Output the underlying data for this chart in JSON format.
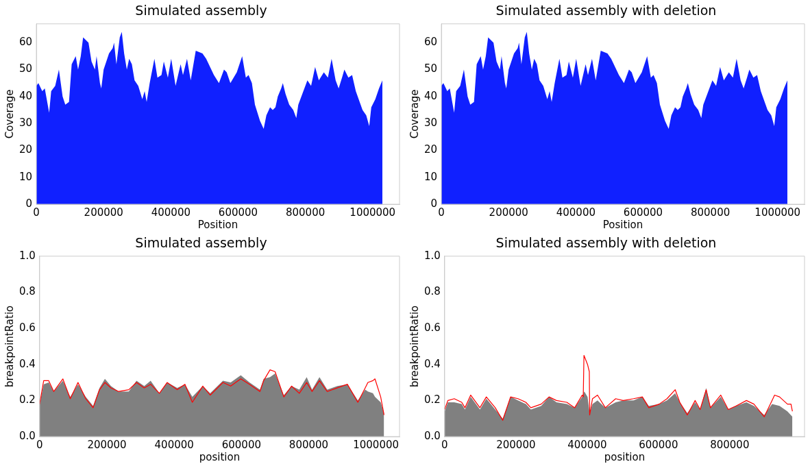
{
  "chart_data": [
    {
      "type": "area",
      "title": "Simulated assembly",
      "xlabel": "Position",
      "ylabel": "Coverage",
      "xlim": [
        0,
        1080000
      ],
      "ylim": [
        0,
        67
      ],
      "xticks": [
        0,
        200000,
        400000,
        600000,
        800000,
        1000000
      ],
      "yticks": [
        0,
        10,
        20,
        30,
        40,
        50,
        60
      ],
      "series": [
        {
          "color": "#1020ff",
          "x": [
            0,
            6000,
            17500,
            25000,
            38000,
            44000,
            56000,
            67000,
            78000,
            86000,
            97000,
            105000,
            117000,
            124000,
            132000,
            139000,
            155000,
            164000,
            174000,
            179000,
            189000,
            193000,
            200000,
            216000,
            227000,
            231000,
            238000,
            248000,
            254000,
            261000,
            269000,
            276000,
            284000,
            292000,
            303000,
            315000,
            322000,
            328000,
            337000,
            351000,
            360000,
            372000,
            379000,
            391000,
            401000,
            414000,
            429000,
            436000,
            448000,
            459000,
            474000,
            494000,
            505000,
            528000,
            543000,
            558000,
            566000,
            577000,
            596000,
            612000,
            623000,
            631000,
            641000,
            650000,
            665000,
            676000,
            684000,
            695000,
            703000,
            711000,
            718000,
            728000,
            733000,
            741000,
            752000,
            764000,
            773000,
            779000,
            794000,
            806000,
            817000,
            829000,
            840000,
            855000,
            867000,
            878000,
            890000,
            899000,
            909000,
            916000,
            928000,
            939000,
            950000,
            970000,
            981000,
            990000,
            996000,
            1008000,
            1019000,
            1029000
          ],
          "values": [
            44,
            45,
            42,
            43,
            34,
            42,
            44,
            50,
            40,
            37,
            38,
            52,
            55,
            50,
            55,
            62,
            60,
            53,
            50,
            55,
            45,
            43,
            50,
            56,
            58,
            60,
            52,
            62,
            64,
            56,
            50,
            54,
            52,
            46,
            44,
            39,
            42,
            38,
            45,
            54,
            47,
            48,
            53,
            47,
            54,
            44,
            52,
            48,
            54,
            46,
            57,
            56,
            54,
            48,
            45,
            50,
            49,
            45,
            49,
            55,
            47,
            48,
            45,
            37,
            31,
            28,
            33,
            36,
            35,
            36,
            40,
            43,
            45,
            41,
            37,
            35,
            32,
            37,
            42,
            46,
            44,
            51,
            46,
            49,
            47,
            54,
            46,
            43,
            47,
            50,
            47,
            48,
            42,
            35,
            33,
            29,
            36,
            39,
            43,
            46
          ]
        }
      ]
    },
    {
      "type": "area",
      "title": "Simulated assembly with deletion",
      "xlabel": "Position",
      "ylabel": "Coverage",
      "xlim": [
        0,
        1080000
      ],
      "ylim": [
        0,
        67
      ],
      "xticks": [
        0,
        200000,
        400000,
        600000,
        800000,
        1000000
      ],
      "yticks": [
        0,
        10,
        20,
        30,
        40,
        50,
        60
      ],
      "series": [
        {
          "color": "#1020ff",
          "x": [
            0,
            6000,
            17500,
            25000,
            38000,
            44000,
            56000,
            67000,
            78000,
            86000,
            97000,
            105000,
            117000,
            124000,
            132000,
            139000,
            155000,
            164000,
            174000,
            179000,
            189000,
            193000,
            200000,
            216000,
            227000,
            231000,
            238000,
            248000,
            254000,
            261000,
            269000,
            276000,
            284000,
            292000,
            303000,
            315000,
            322000,
            328000,
            337000,
            351000,
            360000,
            372000,
            379000,
            391000,
            401000,
            414000,
            429000,
            436000,
            448000,
            459000,
            474000,
            494000,
            505000,
            528000,
            543000,
            558000,
            566000,
            577000,
            596000,
            612000,
            623000,
            631000,
            641000,
            650000,
            665000,
            676000,
            684000,
            695000,
            703000,
            711000,
            718000,
            728000,
            733000,
            741000,
            752000,
            764000,
            773000,
            779000,
            794000,
            806000,
            817000,
            829000,
            840000,
            855000,
            867000,
            878000,
            890000,
            899000,
            909000,
            916000,
            928000,
            939000,
            950000,
            970000,
            981000,
            990000,
            996000,
            1008000,
            1019000,
            1029000
          ],
          "values": [
            44,
            45,
            42,
            43,
            34,
            42,
            44,
            50,
            40,
            37,
            38,
            52,
            55,
            50,
            55,
            62,
            60,
            53,
            50,
            55,
            45,
            43,
            50,
            56,
            58,
            60,
            52,
            62,
            64,
            56,
            50,
            54,
            52,
            46,
            44,
            39,
            42,
            38,
            45,
            54,
            47,
            48,
            53,
            47,
            54,
            44,
            52,
            48,
            54,
            46,
            57,
            56,
            54,
            48,
            45,
            50,
            49,
            45,
            49,
            55,
            47,
            48,
            45,
            37,
            31,
            28,
            33,
            36,
            35,
            36,
            40,
            43,
            45,
            41,
            37,
            35,
            32,
            37,
            42,
            46,
            44,
            51,
            46,
            49,
            47,
            54,
            46,
            43,
            47,
            50,
            47,
            48,
            42,
            35,
            33,
            29,
            36,
            39,
            43,
            46
          ]
        }
      ]
    },
    {
      "type": "area",
      "title": "Simulated assembly",
      "xlabel": "position",
      "ylabel": "breakpointRatio",
      "xlim": [
        0,
        1070000
      ],
      "ylim": [
        0,
        1
      ],
      "xticks": [
        0,
        200000,
        400000,
        600000,
        800000,
        1000000
      ],
      "yticks": [
        {
          "value": 0,
          "label": "0.0"
        },
        {
          "value": 0.2,
          "label": "0.2"
        },
        {
          "value": 0.4,
          "label": "0.4"
        },
        {
          "value": 0.6,
          "label": "0.6"
        },
        {
          "value": 0.8,
          "label": "0.8"
        },
        {
          "value": 1,
          "label": "1.0"
        }
      ],
      "series": [
        {
          "color": "#808080",
          "x": [
            0,
            12000,
            27000,
            42000,
            69000,
            91000,
            114000,
            137000,
            159000,
            178000,
            194000,
            212000,
            235000,
            265000,
            288000,
            311000,
            330000,
            356000,
            379000,
            409000,
            432000,
            454000,
            485000,
            507000,
            545000,
            568000,
            598000,
            624000,
            655000,
            666000,
            685000,
            700000,
            726000,
            749000,
            772000,
            794000,
            810000,
            832000,
            855000,
            885000,
            915000,
            946000,
            968000,
            976000,
            991000,
            997000,
            1014000,
            1024000
          ],
          "values": [
            0.18,
            0.29,
            0.3,
            0.25,
            0.31,
            0.22,
            0.29,
            0.22,
            0.17,
            0.27,
            0.32,
            0.28,
            0.25,
            0.25,
            0.31,
            0.28,
            0.31,
            0.24,
            0.3,
            0.27,
            0.29,
            0.22,
            0.28,
            0.24,
            0.31,
            0.3,
            0.34,
            0.3,
            0.26,
            0.32,
            0.33,
            0.35,
            0.23,
            0.28,
            0.26,
            0.33,
            0.26,
            0.33,
            0.26,
            0.28,
            0.29,
            0.2,
            0.26,
            0.25,
            0.24,
            0.22,
            0.19,
            0.13
          ]
        },
        {
          "type": "line",
          "color": "#ff0000",
          "x": [
            0,
            12000,
            27000,
            42000,
            69000,
            91000,
            114000,
            137000,
            159000,
            178000,
            194000,
            212000,
            235000,
            265000,
            288000,
            311000,
            330000,
            356000,
            379000,
            409000,
            432000,
            454000,
            485000,
            507000,
            545000,
            568000,
            598000,
            624000,
            655000,
            666000,
            685000,
            700000,
            726000,
            749000,
            772000,
            794000,
            810000,
            832000,
            855000,
            885000,
            915000,
            946000,
            968000,
            976000,
            991000,
            997000,
            1014000,
            1024000
          ],
          "values": [
            0.18,
            0.31,
            0.31,
            0.25,
            0.32,
            0.21,
            0.3,
            0.21,
            0.16,
            0.26,
            0.3,
            0.27,
            0.25,
            0.26,
            0.3,
            0.27,
            0.29,
            0.24,
            0.3,
            0.26,
            0.29,
            0.19,
            0.28,
            0.23,
            0.3,
            0.28,
            0.32,
            0.29,
            0.25,
            0.31,
            0.37,
            0.36,
            0.22,
            0.28,
            0.24,
            0.3,
            0.25,
            0.31,
            0.25,
            0.27,
            0.29,
            0.19,
            0.27,
            0.3,
            0.31,
            0.32,
            0.22,
            0.12
          ]
        }
      ]
    },
    {
      "type": "area",
      "title": "Simulated assembly with deletion",
      "xlabel": "position",
      "ylabel": "breakpointRatio",
      "xlim": [
        0,
        1010000
      ],
      "ylim": [
        0,
        1
      ],
      "xticks": [
        0,
        200000,
        400000,
        600000,
        800000
      ],
      "yticks": [
        {
          "value": 0,
          "label": "0.0"
        },
        {
          "value": 0.2,
          "label": "0.2"
        },
        {
          "value": 0.4,
          "label": "0.4"
        },
        {
          "value": 0.6,
          "label": "0.6"
        },
        {
          "value": 0.8,
          "label": "0.8"
        },
        {
          "value": 1,
          "label": "1.0"
        }
      ],
      "series": [
        {
          "color": "#808080",
          "x": [
            0,
            9000,
            27000,
            48000,
            57000,
            73000,
            99000,
            117000,
            142000,
            163000,
            185000,
            206000,
            228000,
            242000,
            271000,
            293000,
            314000,
            343000,
            365000,
            386000,
            392000,
            401000,
            407000,
            415000,
            429000,
            451000,
            480000,
            501000,
            530000,
            555000,
            573000,
            602000,
            624000,
            647000,
            660000,
            681000,
            703000,
            717000,
            734000,
            746000,
            775000,
            796000,
            818000,
            847000,
            868000,
            897000,
            919000,
            940000,
            962000,
            976000
          ],
          "values": [
            0.14,
            0.19,
            0.19,
            0.18,
            0.15,
            0.22,
            0.15,
            0.21,
            0.15,
            0.1,
            0.22,
            0.2,
            0.18,
            0.15,
            0.17,
            0.22,
            0.19,
            0.18,
            0.16,
            0.22,
            0.25,
            0.22,
            0.13,
            0.18,
            0.2,
            0.16,
            0.19,
            0.2,
            0.2,
            0.22,
            0.17,
            0.18,
            0.2,
            0.24,
            0.19,
            0.13,
            0.19,
            0.15,
            0.27,
            0.16,
            0.22,
            0.15,
            0.17,
            0.19,
            0.17,
            0.12,
            0.18,
            0.17,
            0.14,
            0.11
          ]
        },
        {
          "type": "line",
          "color": "#ff0000",
          "x": [
            0,
            9000,
            27000,
            48000,
            57000,
            73000,
            99000,
            117000,
            142000,
            163000,
            185000,
            206000,
            228000,
            242000,
            271000,
            293000,
            314000,
            343000,
            365000,
            386000,
            389000,
            391000,
            401000,
            406000,
            407000,
            415000,
            429000,
            451000,
            480000,
            501000,
            530000,
            555000,
            573000,
            602000,
            624000,
            647000,
            660000,
            681000,
            703000,
            717000,
            734000,
            746000,
            775000,
            796000,
            818000,
            847000,
            868000,
            897000,
            919000,
            926000,
            940000,
            962000,
            972000,
            976000
          ],
          "values": [
            0.15,
            0.2,
            0.21,
            0.19,
            0.16,
            0.23,
            0.16,
            0.22,
            0.16,
            0.09,
            0.22,
            0.21,
            0.19,
            0.16,
            0.18,
            0.22,
            0.2,
            0.19,
            0.16,
            0.23,
            0.22,
            0.45,
            0.4,
            0.36,
            0.12,
            0.21,
            0.23,
            0.16,
            0.21,
            0.2,
            0.21,
            0.22,
            0.16,
            0.18,
            0.21,
            0.26,
            0.19,
            0.12,
            0.2,
            0.15,
            0.26,
            0.16,
            0.23,
            0.15,
            0.17,
            0.2,
            0.18,
            0.11,
            0.2,
            0.23,
            0.22,
            0.18,
            0.18,
            0.14
          ]
        }
      ]
    }
  ]
}
